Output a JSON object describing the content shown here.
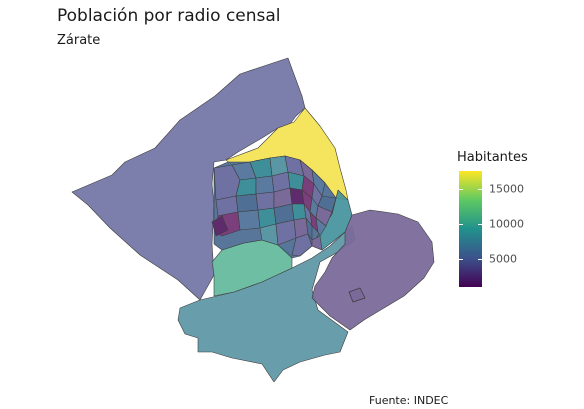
{
  "title": "Población por radio censal",
  "subtitle": "Zárate",
  "caption": "Fuente: INDEC",
  "legend": {
    "title": "Habitantes",
    "range": [
      1000,
      17500
    ],
    "ticks": [
      {
        "value": 5000,
        "label": "5000"
      },
      {
        "value": 10000,
        "label": "10000"
      },
      {
        "value": 15000,
        "label": "15000"
      }
    ],
    "palette": "viridis"
  },
  "colors": {
    "yellow": "#fde725",
    "teal_green": "#5ec962",
    "teal": "#21918c",
    "blue_purple": "#3b528b",
    "dark_purple": "#440154"
  }
}
